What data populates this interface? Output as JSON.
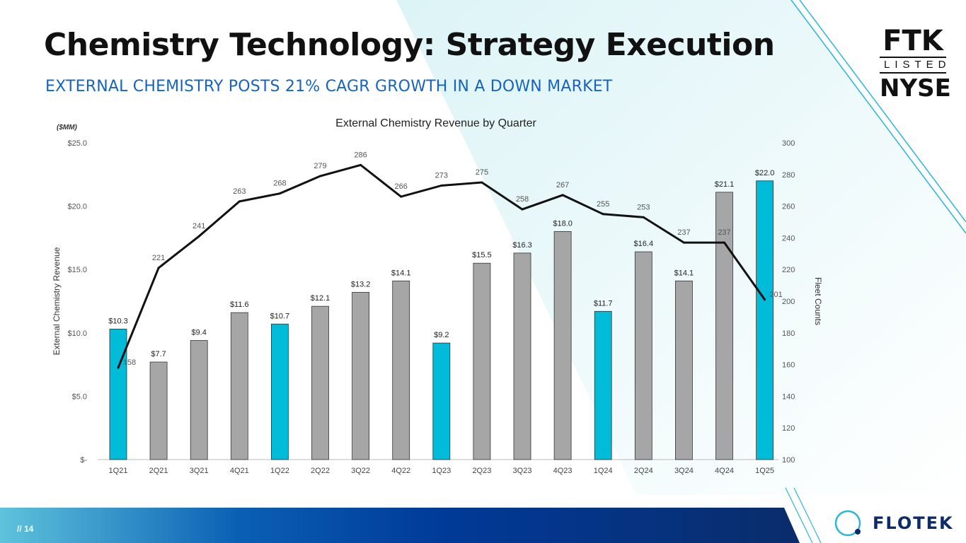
{
  "header": {
    "title": "Chemistry Technology: Strategy Execution",
    "subtitle": "EXTERNAL CHEMISTRY POSTS 21% CAGR GROWTH IN A DOWN MARKET"
  },
  "logo": {
    "line1": "FTK",
    "line2": "LISTED",
    "line3": "NYSE"
  },
  "footer": {
    "page": "// 14",
    "brand": "FLOTEK"
  },
  "colors": {
    "highlight_bar": "#00BCD8",
    "bar": "#A6A6A6",
    "line": "#111111",
    "title": "#111111",
    "subtitle": "#1565C0",
    "footer_dark": "#0A2C6B"
  },
  "chart_data": {
    "type": "bar+line",
    "title": "External Chemistry Revenue by Quarter",
    "unit_label": "($MM)",
    "ylabel": "External Chemistry Revenue",
    "y2label": "Fleet Counts",
    "ylim": [
      0,
      25
    ],
    "y2lim": [
      100,
      300
    ],
    "yticks": [
      "$-",
      "$5.0",
      "$10.0",
      "$15.0",
      "$20.0",
      "$25.0"
    ],
    "y2ticks": [
      "100",
      "120",
      "140",
      "160",
      "180",
      "200",
      "220",
      "240",
      "260",
      "280",
      "300"
    ],
    "grid": false,
    "categories": [
      "1Q21",
      "2Q21",
      "3Q21",
      "4Q21",
      "1Q22",
      "2Q22",
      "3Q22",
      "4Q22",
      "1Q23",
      "2Q23",
      "3Q23",
      "4Q23",
      "1Q24",
      "2Q24",
      "3Q24",
      "4Q24",
      "1Q25"
    ],
    "series": [
      {
        "name": "External Chemistry Revenue",
        "type": "bar",
        "axis": "left",
        "values": [
          10.3,
          7.7,
          9.4,
          11.6,
          10.7,
          12.1,
          13.2,
          14.1,
          9.2,
          15.5,
          16.3,
          18.0,
          11.7,
          16.4,
          14.1,
          21.1,
          22.0
        ],
        "labels": [
          "$10.3",
          "$7.7",
          "$9.4",
          "$11.6",
          "$10.7",
          "$12.1",
          "$13.2",
          "$14.1",
          "$9.2",
          "$15.5",
          "$16.3",
          "$18.0",
          "$11.7",
          "$16.4",
          "$14.1",
          "$21.1",
          "$22.0"
        ],
        "highlighted": [
          true,
          false,
          false,
          false,
          true,
          false,
          false,
          false,
          true,
          false,
          false,
          false,
          true,
          false,
          false,
          false,
          true
        ]
      },
      {
        "name": "Fleet Counts",
        "type": "line",
        "axis": "right",
        "values": [
          158,
          221,
          241,
          263,
          268,
          279,
          286,
          266,
          273,
          275,
          258,
          267,
          255,
          253,
          237,
          237,
          201
        ]
      }
    ]
  }
}
